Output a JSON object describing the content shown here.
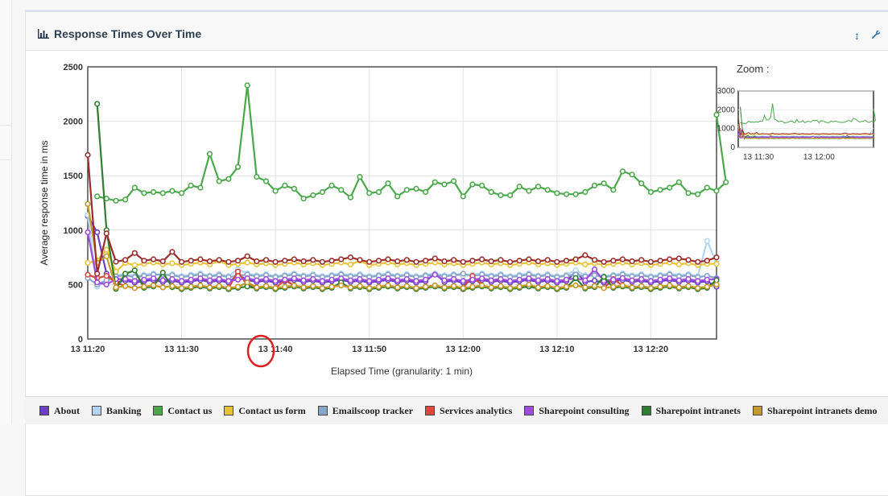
{
  "panel": {
    "title": "Response Times Over Time",
    "icon": "bar-chart-icon",
    "tools": [
      {
        "name": "expand-icon",
        "glyph": "↕"
      },
      {
        "name": "wrench-icon",
        "glyph": "🔧"
      }
    ]
  },
  "zoom": {
    "label": "Zoom :",
    "y_ticks": [
      "0",
      "1000",
      "2000",
      "3000"
    ],
    "x_ticks": [
      "13 11:30",
      "13 12:00"
    ]
  },
  "chart_data": {
    "type": "line",
    "title": "",
    "xlabel": "Elapsed Time (granularity: 1 min)",
    "ylabel": "Average response time in ms",
    "ylim": [
      0,
      2500
    ],
    "y_ticks": [
      0,
      500,
      1000,
      1500,
      2000,
      2500
    ],
    "x_range_minutes": [
      0,
      67
    ],
    "x_ticks": [
      {
        "label": "13 11:20",
        "minute": 0
      },
      {
        "label": "13 11:30",
        "minute": 10
      },
      {
        "label": "13 11:40",
        "minute": 20
      },
      {
        "label": "13 11:50",
        "minute": 30
      },
      {
        "label": "13 12:00",
        "minute": 40
      },
      {
        "label": "13 12:10",
        "minute": 50
      },
      {
        "label": "13 12:20",
        "minute": 60
      }
    ],
    "grid": true,
    "legend_position": "bottom",
    "annotation": {
      "type": "red-circle",
      "near_tick": "13 11:40"
    },
    "series": [
      {
        "name": "About",
        "color": "#6a3fc1",
        "start": [
          [
            0,
            1130
          ],
          [
            1,
            980
          ],
          [
            2,
            600
          ],
          [
            3,
            520
          ]
        ],
        "base": 530,
        "spikes": [
          [
            16,
            590
          ],
          [
            37,
            600
          ],
          [
            52,
            620
          ]
        ],
        "end": 480
      },
      {
        "name": "Banking",
        "color": "#b3d4f0",
        "start": [
          [
            0,
            1140
          ],
          [
            1,
            480
          ],
          [
            2,
            530
          ]
        ],
        "base": 590,
        "spikes": [
          [
            16,
            640
          ],
          [
            52,
            630
          ],
          [
            66,
            900
          ]
        ],
        "end": 700
      },
      {
        "name": "Contact us",
        "color": "#4aa84a",
        "start": [
          [
            1,
            1310
          ],
          [
            2,
            1290
          ],
          [
            3,
            1270
          ],
          [
            4,
            1280
          ],
          [
            5,
            1390
          ],
          [
            6,
            1340
          ]
        ],
        "values": [
          1350,
          1340,
          1360,
          1340,
          1410,
          1390,
          1700,
          1450,
          1470,
          1580,
          2330,
          1490,
          1450,
          1360,
          1410,
          1380,
          1290,
          1320,
          1350,
          1410,
          1370,
          1300,
          1490,
          1340,
          1350,
          1430,
          1310,
          1370,
          1380,
          1350,
          1440,
          1420,
          1450,
          1310,
          1420,
          1410,
          1350,
          1320,
          1320,
          1400,
          1360,
          1400,
          1370,
          1340,
          1330,
          1330,
          1350,
          1410,
          1430,
          1370,
          1540,
          1510,
          1430,
          1350,
          1370,
          1390,
          1440,
          1340,
          1330,
          1390,
          1360,
          1440
        ],
        "end": 2060
      },
      {
        "name": "Contact us form",
        "color": "#e8c33a",
        "start": [
          [
            0,
            700
          ],
          [
            1,
            720
          ],
          [
            2,
            820
          ],
          [
            3,
            620
          ],
          [
            4,
            700
          ]
        ],
        "base": 690,
        "spikes": [
          [
            14,
            720
          ],
          [
            29,
            720
          ]
        ],
        "end": 690
      },
      {
        "name": "Emailscoop tracker",
        "color": "#86a5c8",
        "start": [
          [
            0,
            560
          ],
          [
            1,
            500
          ],
          [
            2,
            540
          ]
        ],
        "base": 580,
        "spikes": [
          [
            8,
            590
          ],
          [
            40,
            600
          ]
        ],
        "end": 560
      },
      {
        "name": "Services analytics",
        "color": "#d9473f",
        "start": [
          [
            0,
            590
          ],
          [
            1,
            560
          ],
          [
            2,
            580
          ],
          [
            3,
            520
          ]
        ],
        "base": 480,
        "spikes": [
          [
            16,
            620
          ],
          [
            21,
            540
          ],
          [
            41,
            580
          ],
          [
            56,
            550
          ]
        ],
        "end": 500
      },
      {
        "name": "Sharepoint consulting",
        "color": "#a04be0",
        "start": [
          [
            0,
            980
          ],
          [
            1,
            520
          ],
          [
            2,
            500
          ],
          [
            3,
            550
          ]
        ],
        "base": 545,
        "spikes": [
          [
            37,
            590
          ],
          [
            54,
            640
          ],
          [
            57,
            560
          ]
        ],
        "end": 550
      },
      {
        "name": "Sharepoint intranets",
        "color": "#2f7d32",
        "start": [
          [
            1,
            2160
          ],
          [
            2,
            1000
          ],
          [
            3,
            460
          ],
          [
            4,
            600
          ]
        ],
        "base": 470,
        "spikes": [
          [
            5,
            630
          ],
          [
            8,
            610
          ],
          [
            27,
            520
          ],
          [
            52,
            560
          ],
          [
            55,
            570
          ]
        ],
        "end": 540
      },
      {
        "name": "Sharepoint intranets demo",
        "color": "#c49a2c",
        "start": [
          [
            0,
            1240
          ],
          [
            1,
            700
          ],
          [
            2,
            760
          ]
        ],
        "base": 480,
        "spikes": [
          [
            17,
            520
          ],
          [
            47,
            500
          ]
        ],
        "end": 500
      },
      {
        "name": "",
        "color": "#9a2e2e",
        "start": [
          [
            0,
            1690
          ],
          [
            1,
            600
          ],
          [
            2,
            970
          ],
          [
            3,
            710
          ]
        ],
        "base": 720,
        "spikes": [
          [
            5,
            790
          ],
          [
            9,
            800
          ],
          [
            17,
            760
          ],
          [
            28,
            750
          ],
          [
            37,
            740
          ],
          [
            53,
            770
          ],
          [
            63,
            740
          ]
        ],
        "end": 750
      }
    ]
  }
}
